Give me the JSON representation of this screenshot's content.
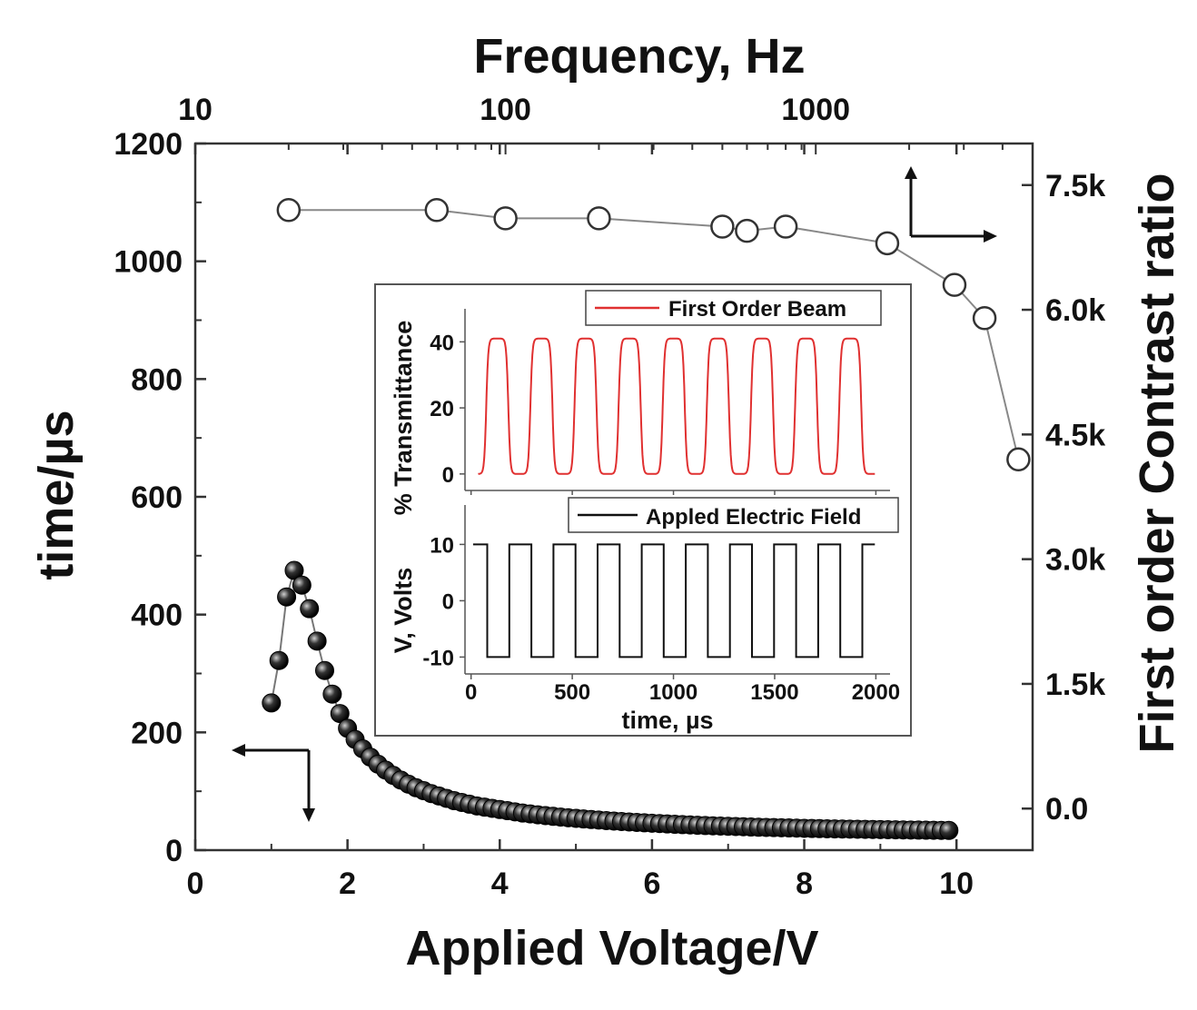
{
  "chart_data": [
    {
      "type": "scatter",
      "xlabel": "Applied Voltage/V",
      "ylabel": "time/µs",
      "y2label": "First order Contrast ratio",
      "top_xlabel": "Frequency, Hz",
      "xlim": [
        0,
        11
      ],
      "ylim": [
        0,
        1200
      ],
      "y2lim": [
        -500,
        8000
      ],
      "top_xscale": "log",
      "top_xlim": [
        10,
        5000
      ],
      "x_ticks": [
        "0",
        "2",
        "4",
        "6",
        "8",
        "10"
      ],
      "y_ticks": [
        "0",
        "200",
        "400",
        "600",
        "800",
        "1000",
        "1200"
      ],
      "y2_ticks": [
        "0.0",
        "1.5k",
        "3.0k",
        "4.5k",
        "6.0k",
        "7.5k"
      ],
      "top_ticks": [
        "10",
        "100",
        "1000"
      ],
      "series": [
        {
          "axis": "bottom-left",
          "marker": "filled-circle",
          "x": [
            1.0,
            1.1,
            1.2,
            1.3,
            1.4,
            1.5,
            1.6,
            1.7,
            1.8,
            1.9,
            2.0,
            2.1,
            2.2,
            2.3,
            2.4,
            2.5,
            2.6,
            2.7,
            2.8,
            2.9,
            3.0,
            3.1,
            3.2,
            3.3,
            3.4,
            3.5,
            3.6,
            3.7,
            3.8,
            3.9,
            4.0,
            4.1,
            4.2,
            4.3,
            4.4,
            4.5,
            4.6,
            4.7,
            4.8,
            4.9,
            5.0,
            5.1,
            5.2,
            5.3,
            5.4,
            5.5,
            5.6,
            5.7,
            5.8,
            5.9,
            6.0,
            6.1,
            6.2,
            6.3,
            6.4,
            6.5,
            6.6,
            6.7,
            6.8,
            6.9,
            7.0,
            7.1,
            7.2,
            7.3,
            7.4,
            7.5,
            7.6,
            7.7,
            7.8,
            7.9,
            8.0,
            8.1,
            8.2,
            8.3,
            8.4,
            8.5,
            8.6,
            8.7,
            8.8,
            8.9,
            9.0,
            9.1,
            9.2,
            9.3,
            9.4,
            9.5,
            9.6,
            9.7,
            9.8,
            9.9
          ],
          "y": [
            250,
            322,
            430,
            475,
            450,
            410,
            355,
            305,
            265,
            232,
            207,
            188,
            172,
            158,
            146,
            136,
            127,
            119,
            112,
            106,
            101,
            96,
            92,
            88,
            84,
            81,
            78,
            75,
            73,
            71,
            69,
            67,
            65,
            63,
            61.5,
            60,
            58.7,
            57.4,
            56.2,
            55,
            54,
            53,
            52,
            51.1,
            50.2,
            49.4,
            48.6,
            47.8,
            47.1,
            46.4,
            45.7,
            45.1,
            44.5,
            43.9,
            43.3,
            42.8,
            42.3,
            41.8,
            41.3,
            40.9,
            40.5,
            40.1,
            39.7,
            39.3,
            38.9,
            38.6,
            38.3,
            38,
            37.7,
            37.4,
            37.1,
            36.8,
            36.6,
            36.3,
            36.1,
            35.9,
            35.7,
            35.5,
            35.3,
            35.1,
            34.9,
            34.7,
            34.5,
            34.4,
            34.2,
            34.1,
            33.9,
            33.8,
            33.6,
            33.5
          ]
        },
        {
          "axis": "top-right",
          "marker": "open-circle",
          "x": [
            20,
            60,
            100,
            200,
            500,
            600,
            800,
            1700,
            2800,
            3500,
            4500
          ],
          "y": [
            7200,
            7200,
            7100,
            7100,
            7000,
            6950,
            7000,
            6800,
            6300,
            5900,
            4200
          ]
        }
      ]
    },
    {
      "type": "line",
      "panel": "inset-top",
      "ylabel": "% Transmittance",
      "ylim": [
        -5,
        50
      ],
      "y_ticks": [
        "0",
        "20",
        "40"
      ],
      "series": [
        {
          "name": "First Order Beam",
          "color": "#e03030",
          "period": 218,
          "high": 41,
          "low": 0,
          "start": 35,
          "end": 1995
        }
      ]
    },
    {
      "type": "line",
      "panel": "inset-bottom",
      "xlabel": "time, µs",
      "ylabel": "V, Volts",
      "xlim": [
        -30,
        2070
      ],
      "ylim": [
        -13,
        17
      ],
      "x_ticks": [
        "0",
        "500",
        "1000",
        "1500",
        "2000"
      ],
      "y_ticks": [
        "-10",
        "0",
        "10"
      ],
      "series": [
        {
          "name": "Appled Electric Field",
          "color": "#111111",
          "period": 218,
          "high": 10,
          "low": -10,
          "start": 80,
          "end": 1995
        }
      ]
    }
  ]
}
